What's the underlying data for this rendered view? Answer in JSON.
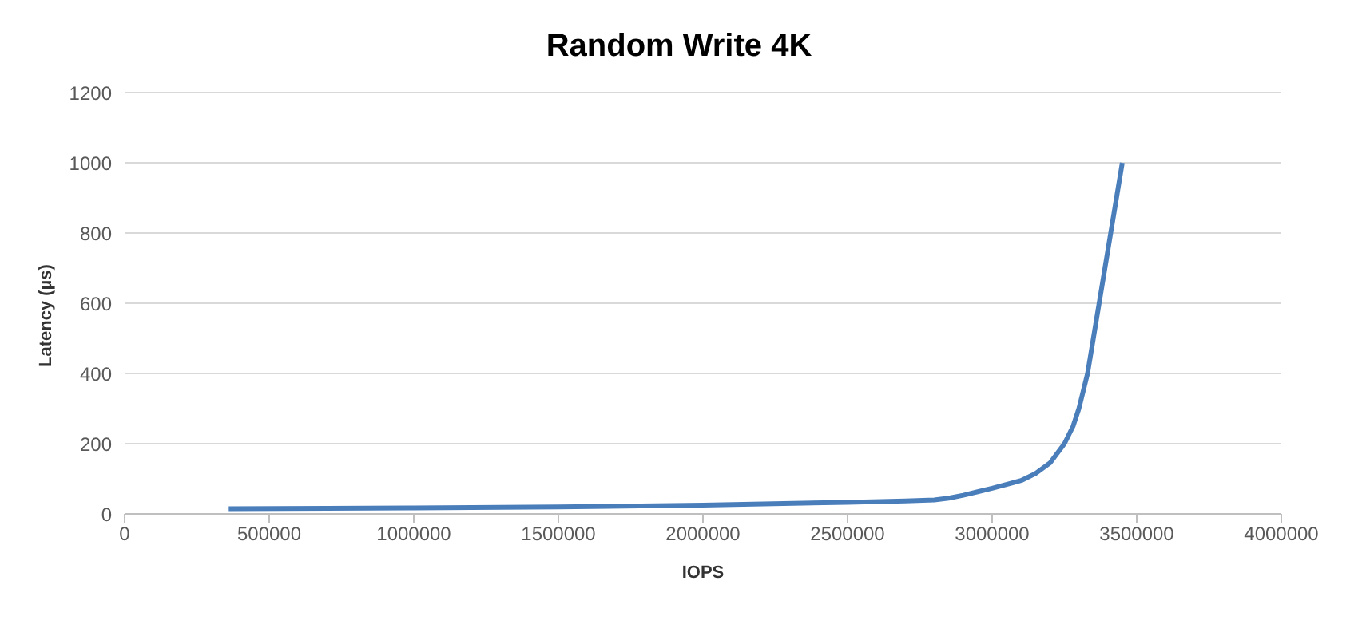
{
  "chart_data": {
    "type": "line",
    "title": "Random Write 4K",
    "xlabel": "IOPS",
    "ylabel": "Latency (µs)",
    "x": [
      360000,
      700000,
      1000000,
      1500000,
      2000000,
      2500000,
      2700000,
      2800000,
      2850000,
      2900000,
      2950000,
      3000000,
      3100000,
      3150000,
      3200000,
      3250000,
      3280000,
      3300000,
      3330000,
      3350000,
      3370000,
      3390000,
      3410000,
      3430000,
      3450000
    ],
    "series": [
      {
        "color": "#4a7ebb",
        "values": [
          15,
          16,
          17,
          20,
          25,
          33,
          37,
          40,
          45,
          53,
          63,
          73,
          95,
          115,
          145,
          200,
          250,
          300,
          400,
          500,
          600,
          700,
          800,
          900,
          1000
        ]
      }
    ],
    "xlim": [
      0,
      4000000
    ],
    "xticks": [
      0,
      500000,
      1000000,
      1500000,
      2000000,
      2500000,
      3000000,
      3500000,
      4000000
    ],
    "ylim": [
      0,
      1200
    ],
    "yticks": [
      0,
      200,
      400,
      600,
      800,
      1000,
      1200
    ],
    "grid": "y",
    "marker": "none",
    "line_style": "solid"
  }
}
